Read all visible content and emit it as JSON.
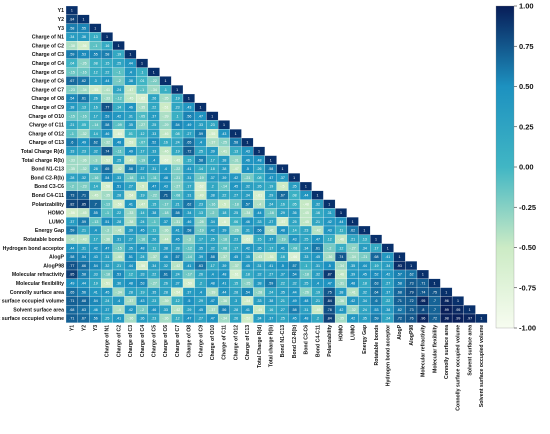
{
  "chart_data": {
    "type": "heatmap",
    "layout": "lower-triangular correlation matrix with colorbar at right",
    "variables": [
      "Y1",
      "Y2",
      "Y3",
      "Charge of N1",
      "Charge of C2",
      "Charge of C3",
      "Charge of C4",
      "Charge of C5",
      "Charge of C6",
      "Charge of C7",
      "Charge of O8",
      "Charge of C9",
      "Charge of O10",
      "Charge of C11",
      "Charge of O12",
      "Charge of C13",
      "Total Charge R(d)",
      "Total charge R(b)",
      "Bond N1-C13",
      "Bond C2-R(b)",
      "Bond C3-C6",
      "Bond C4-C11",
      "Polarizability",
      "HOMO",
      "LUMO",
      "Energy Gap",
      "Rotatable bonds",
      "Hydrogen bond acceptor",
      "AlogP",
      "AlogP98",
      "Molecular refractivity",
      "Molecular flexibility",
      "Connolly surface area",
      "Connolly surface occupied volume",
      "Solvent surface area",
      "Solvent surface occupied volume"
    ],
    "matrix_rows": [
      [
        1
      ],
      [
        0.84,
        1
      ],
      [
        0.58,
        0.55,
        1
      ],
      [
        0.34,
        0.36,
        0.13,
        1
      ],
      [
        -0.38,
        -0.56,
        -0.1,
        0.16,
        1
      ],
      [
        0.59,
        0.53,
        0.55,
        0.58,
        0.19,
        1
      ],
      [
        0.04,
        -0.26,
        0.08,
        0.15,
        0.25,
        0.44,
        1
      ],
      [
        -0.15,
        -0.16,
        0.12,
        0.22,
        -0.1,
        0.4,
        0.1,
        1
      ],
      [
        0.67,
        0.62,
        0.3,
        0.44,
        -0.2,
        0.38,
        0.01,
        -0.22,
        1
      ],
      [
        -0.23,
        -0.34,
        -0.55,
        -0.41,
        0.24,
        -0.47,
        -0.1,
        -0.34,
        0.1,
        1
      ],
      [
        0.54,
        0.61,
        0.26,
        -0.33,
        -0.12,
        -0.45,
        -0.62,
        0.26,
        -0.35,
        0.19,
        1
      ],
      [
        0.38,
        0.13,
        0.16,
        0.77,
        0.14,
        0.46,
        -0.35,
        0.22,
        -0.51,
        0.23,
        0.43,
        1
      ],
      [
        -0.15,
        -0.16,
        0.17,
        0.53,
        0.42,
        0.31,
        -0.05,
        0.37,
        -0.39,
        0.1,
        0.56,
        0.47,
        1
      ],
      [
        0.21,
        0.05,
        -0.14,
        0.58,
        -0.09,
        0.35,
        -0.27,
        0.25,
        -0.29,
        0.54,
        0.49,
        0.33,
        0.23,
        1
      ],
      [
        -0.1,
        -0.32,
        0.14,
        0.46,
        -0.64,
        0.01,
        0.12,
        0.33,
        -0.46,
        0.08,
        0.27,
        0.59,
        -0.55,
        0.43,
        1
      ],
      [
        0.6,
        0.49,
        0.62,
        -0.32,
        0.48,
        -0.53,
        -0.07,
        0.52,
        0.16,
        0.24,
        0.65,
        0.4,
        -0.37,
        -0.25,
        0.58,
        1
      ],
      [
        0.33,
        0.23,
        0.32,
        0.74,
        -0.11,
        0.49,
        0.17,
        0.33,
        -0.46,
        0.19,
        0.72,
        0.25,
        0.39,
        -0.41,
        0.13,
        0.43,
        1
      ],
      [
        -0.33,
        -0.36,
        -0.3,
        -0.53,
        0.25,
        -0.49,
        -0.19,
        0.4,
        -0.67,
        -0.45,
        0.15,
        0.58,
        0.17,
        0.38,
        -0.31,
        0.46,
        0.48,
        1
      ],
      [
        -0.35,
        -0.32,
        0.28,
        0.65,
        -0.42,
        0.58,
        0.37,
        0.31,
        0.4,
        -0.22,
        0.41,
        0.14,
        0.18,
        0.38,
        -0.47,
        0.5,
        0.26,
        0.58,
        1
      ],
      [
        0.28,
        0.32,
        -0.16,
        0.54,
        0.33,
        -0.18,
        0.13,
        -0.11,
        0.48,
        -0.21,
        0.31,
        -0.19,
        0.37,
        0.39,
        0.42,
        -0.21,
        0.08,
        0.47,
        0.37,
        1
      ],
      [
        -0.2,
        -0.23,
        0.14,
        -0.58,
        0.51,
        0.27,
        -0.5,
        0.47,
        0.43,
        -0.27,
        0.17,
        -0.62,
        0.2,
        -0.14,
        0.45,
        0.32,
        0.26,
        0.19,
        -0.5,
        0.35,
        1
      ],
      [
        0.73,
        0.71,
        -0.45,
        -0.35,
        0.28,
        -0.54,
        0.19,
        -0.22,
        0.71,
        -0.08,
        0.31,
        -0.49,
        0.38,
        0.22,
        0.27,
        0.34,
        -0.61,
        0.29,
        0.67,
        0.08,
        0.44,
        1
      ],
      [
        0.82,
        0.85,
        0.7,
        -0.13,
        -0.56,
        0.41,
        -0.47,
        0.15,
        -0.17,
        0.21,
        0.62,
        0.23,
        -0.16,
        -0.5,
        -0.18,
        0.57,
        -0.4,
        0.24,
        0.16,
        0.05,
        -0.48,
        0.32,
        1
      ],
      [
        -0.56,
        -0.45,
        0.55,
        -0.1,
        0.22,
        -0.33,
        0.14,
        0.38,
        -0.18,
        0.58,
        0.34,
        0.13,
        -0.2,
        0.18,
        0.25,
        -0.34,
        0.44,
        -0.16,
        0.29,
        0.36,
        -0.45,
        0.16,
        0.31,
        1
      ],
      [
        0.37,
        0.59,
        -0.13,
        0.51,
        0.28,
        -0.38,
        0.24,
        -0.1,
        0.37,
        -0.31,
        0.46,
        -0.28,
        0.34,
        -0.6,
        0.06,
        0.46,
        0.33,
        0.27,
        -0.57,
        0.25,
        -0.45,
        0.21,
        0.42,
        0.44,
        1
      ],
      [
        0.59,
        0.21,
        0.4,
        -0.3,
        -0.41,
        0.39,
        0.45,
        0.11,
        -0.36,
        0.41,
        0.58,
        -0.19,
        0.42,
        0.39,
        -0.26,
        0.31,
        0.56,
        -0.41,
        0.48,
        0.14,
        0.23,
        -0.42,
        0.43,
        0.11,
        0.62,
        1
      ],
      [
        -0.41,
        -0.43,
        0.17,
        -0.36,
        0.31,
        0.27,
        -0.16,
        0.26,
        -0.44,
        0.45,
        -0.3,
        0.17,
        0.25,
        -0.18,
        0.23,
        -0.61,
        0.15,
        0.37,
        -0.19,
        0.43,
        0.25,
        0.47,
        0.12,
        -0.46,
        0.21,
        0.13,
        1
      ],
      [
        0.44,
        0.31,
        0.42,
        0.47,
        -0.15,
        0.35,
        0.48,
        0.11,
        0.38,
        0.28,
        -0.12,
        0.35,
        0.32,
        -0.08,
        0.17,
        0.42,
        0.35,
        0.17,
        0.41,
        -0.08,
        0.34,
        0.61,
        -0.2,
        0.12,
        -0.27,
        0.34,
        0.17,
        1
      ],
      [
        0.58,
        0.54,
        0.43,
        0.31,
        -0.44,
        0.51,
        0.24,
        -0.37,
        0.46,
        0.57,
        -0.14,
        0.39,
        0.58,
        -0.37,
        0.45,
        0.35,
        -0.43,
        -0.51,
        0.16,
        -0.66,
        0.33,
        0.45,
        -0.36,
        0.74,
        -0.34,
        -0.21,
        0.68,
        0.41,
        1
      ],
      [
        0.77,
        0.66,
        0.54,
        0.32,
        0.21,
        0.44,
        -0.56,
        0.34,
        0.32,
        -0.42,
        0.41,
        0.63,
        0.17,
        0.39,
        -0.37,
        0.45,
        0.31,
        0.41,
        0.5,
        0.57,
        0.1,
        0.31,
        0.5,
        -0.34,
        0.35,
        0.44,
        0.19,
        0.34,
        0.93,
        1
      ],
      [
        0.85,
        0.58,
        0.33,
        -0.18,
        0.53,
        0.12,
        0.33,
        0.22,
        0.61,
        0.24,
        -0.17,
        0.26,
        0.4,
        0.48,
        -0.61,
        0.18,
        0.32,
        0.27,
        0.37,
        0.54,
        -0.18,
        0.32,
        0.87,
        -0.46,
        0.39,
        0.45,
        0.52,
        0.42,
        0.57,
        0.62,
        1
      ],
      [
        0.49,
        0.44,
        0.19,
        -0.51,
        0.36,
        0.48,
        0.53,
        -0.27,
        0.26,
        0.37,
        -0.59,
        0.2,
        0.48,
        0.41,
        0.15,
        -0.25,
        0.38,
        0.59,
        0.22,
        0.32,
        0.25,
        0.4,
        0.47,
        -0.31,
        0.48,
        0.18,
        0.63,
        0.27,
        0.58,
        0.73,
        0.71,
        1
      ],
      [
        0.65,
        0.56,
        0.41,
        0.45,
        -0.34,
        0.28,
        0.19,
        0.35,
        0.28,
        -0.54,
        0.37,
        0.4,
        -0.39,
        0.44,
        0.28,
        0.54,
        -0.28,
        0.24,
        0.35,
        0.44,
        -0.26,
        0.19,
        0.75,
        0.38,
        -0.41,
        0.32,
        0.64,
        0.37,
        0.68,
        0.79,
        0.74,
        0.75,
        1
      ],
      [
        0.71,
        0.68,
        0.54,
        0.24,
        0.4,
        -0.37,
        0.43,
        0.23,
        -0.39,
        0.12,
        0.5,
        0.29,
        0.47,
        -0.36,
        0.3,
        -0.54,
        0.33,
        0.38,
        0.21,
        0.49,
        0.48,
        0.21,
        0.84,
        -0.36,
        0.42,
        0.34,
        0.6,
        0.22,
        0.71,
        0.72,
        0.95,
        0.7,
        0.96,
        1
      ],
      [
        0.68,
        0.63,
        0.46,
        0.37,
        -0.4,
        0.42,
        -0.2,
        0.46,
        0.33,
        -0.42,
        0.29,
        0.45,
        -0.37,
        0.56,
        0.28,
        0.41,
        -0.49,
        0.16,
        0.27,
        0.58,
        0.31,
        -0.49,
        0.78,
        0.42,
        -0.32,
        0.24,
        0.53,
        0.38,
        0.62,
        0.73,
        0.8,
        0.7,
        0.99,
        0.95,
        1
      ],
      [
        0.71,
        0.67,
        0.56,
        0.25,
        0.41,
        -0.36,
        0.36,
        0.23,
        -0.36,
        0.12,
        0.47,
        0.27,
        0.47,
        -0.34,
        0.26,
        -0.52,
        0.34,
        0.37,
        0.25,
        0.45,
        0.48,
        0.2,
        0.84,
        -0.35,
        0.42,
        0.35,
        0.59,
        0.24,
        0.72,
        0.76,
        0.96,
        0.72,
        0.98,
        0.99,
        0.97,
        1
      ]
    ],
    "colorbar": {
      "min": -1.0,
      "max": 1.0,
      "ticks": [
        "1.00",
        "0.75",
        "0.50",
        "0.25",
        "0.00",
        "-0.25",
        "-0.50",
        "-0.75",
        "-1.00"
      ]
    },
    "cell_text_color": "#ffffff",
    "colors": {
      "neg1": "#f7fcf0",
      "neg05": "#ccebc5",
      "zero": "#41b6c4",
      "pos05": "#1d91c0",
      "pos1": "#081d58",
      "diag": "#08306b"
    }
  }
}
